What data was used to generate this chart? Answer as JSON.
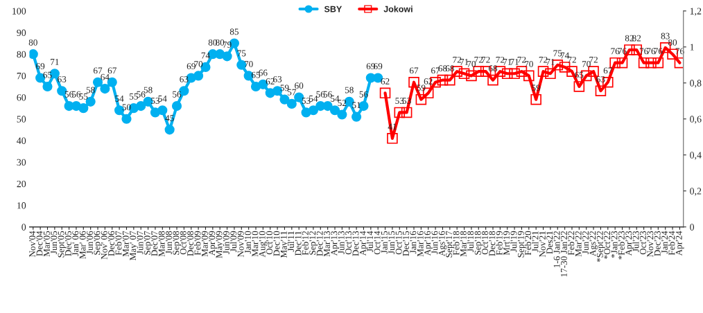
{
  "chart_data": {
    "type": "line",
    "categories": [
      "Nov'04",
      "Dec'04",
      "Mar'05",
      "Jun'05",
      "Sept'05",
      "Dec'05",
      "Jan' 06",
      "Mar' 06",
      "Jun'06",
      "Sep'06",
      "Nov' 06",
      "Dec'06",
      "Feb'07",
      "Mar'07",
      "May' 07",
      "Jun'07",
      "Sep'07",
      "Dec'07",
      "Mar'08",
      "Jun'08",
      "Sep'08",
      "Oct'08",
      "Dec'08",
      "Feb'09",
      "Mar'09",
      "Apr'09",
      "May'09",
      "Jun'09",
      "Jul'09",
      "Nov'09",
      "Jan'10",
      "Mar'10",
      "Aug'10",
      "Oct'10",
      "Dec'10",
      "May'11",
      "Jul'11",
      "Dec'11",
      "Feb'12",
      "Sep'12",
      "Dec'12",
      "Mar'13",
      "Apr'13",
      "Jun'13",
      "Oct'13",
      "Dec'13",
      "Apr'14",
      "Jul'14",
      "Oct'14",
      "Jan'15",
      "Jun'15",
      "Oct'15",
      "Dec'15",
      "Jan'16",
      "Mar'16",
      "Apr'16",
      "Jun'16",
      "Ags'16",
      "Sept'17",
      "Feb'18",
      "Mar'18",
      "Jul'18",
      "Sep'18",
      "Oct'18",
      "Dec'18",
      "Feb'19",
      "Mrt'19",
      "Jul'19",
      "Sept'19",
      "Feb'20",
      "Jul'21",
      "Nov'21",
      "Des21",
      "1-6 Jan'22",
      "17-30 Jan'22",
      "Feb'22",
      "Mar'22",
      "Jun'22",
      "Ags'22",
      "*Sept'22",
      "*Oct'22",
      "*Jan'23",
      "*Feb'23",
      "Apr'23",
      "Jul'23",
      "Oct'23",
      "Nov'23",
      "Dec'23",
      "Jan'24",
      "Feb'24",
      "Apr'24"
    ],
    "series": [
      {
        "name": "SBY",
        "color": "#00b0f0",
        "marker": "circle",
        "values": [
          80,
          69,
          65,
          71,
          63,
          56,
          56,
          55,
          58,
          67,
          64,
          67,
          54,
          50,
          55,
          56,
          58,
          53,
          54,
          45,
          56,
          63,
          69,
          70,
          74,
          80,
          80,
          79,
          85,
          75,
          70,
          65,
          66,
          62,
          63,
          59,
          57,
          60,
          53,
          54,
          56,
          56,
          54,
          52,
          58,
          51,
          56,
          69,
          69,
          null,
          null,
          null,
          null,
          null,
          null,
          null,
          null,
          null,
          null,
          null,
          null,
          null,
          null,
          null,
          null,
          null,
          null,
          null,
          null,
          null,
          null,
          null,
          null,
          null,
          null,
          null,
          null,
          null,
          null,
          null,
          null,
          null,
          null,
          null,
          null,
          null,
          null,
          null,
          null,
          null,
          null
        ]
      },
      {
        "name": "Jokowi",
        "color": "#ff0000",
        "marker": "square",
        "values": [
          null,
          null,
          null,
          null,
          null,
          null,
          null,
          null,
          null,
          null,
          null,
          null,
          null,
          null,
          null,
          null,
          null,
          null,
          null,
          null,
          null,
          null,
          null,
          null,
          null,
          null,
          null,
          null,
          null,
          null,
          null,
          null,
          null,
          null,
          null,
          null,
          null,
          null,
          null,
          null,
          null,
          null,
          null,
          null,
          null,
          null,
          null,
          null,
          null,
          62,
          41,
          53,
          53,
          67,
          59,
          62,
          67,
          68,
          68,
          72,
          71,
          70,
          72,
          72,
          68,
          72,
          71,
          71,
          72,
          70,
          59,
          72,
          71,
          75,
          74,
          72,
          65,
          70,
          72,
          63,
          67,
          76,
          76,
          82,
          82,
          76,
          76,
          76,
          83,
          80,
          76
        ]
      }
    ],
    "ylim": [
      0,
      100
    ],
    "yticks": [
      0,
      10,
      20,
      30,
      40,
      50,
      60,
      70,
      80,
      90,
      100
    ],
    "y2lim": [
      0,
      1.2
    ],
    "y2ticks": [
      0,
      {
        "value": 0.2,
        "label": "0,2"
      },
      {
        "value": 0.4,
        "label": "0,4"
      },
      {
        "value": 0.6,
        "label": "0,6"
      },
      {
        "value": 0.8,
        "label": "0,8"
      },
      {
        "value": 1,
        "label": "1"
      },
      {
        "value": 1.2,
        "label": "1,2"
      }
    ],
    "data_labels": true,
    "legend": "top",
    "grid": false
  }
}
